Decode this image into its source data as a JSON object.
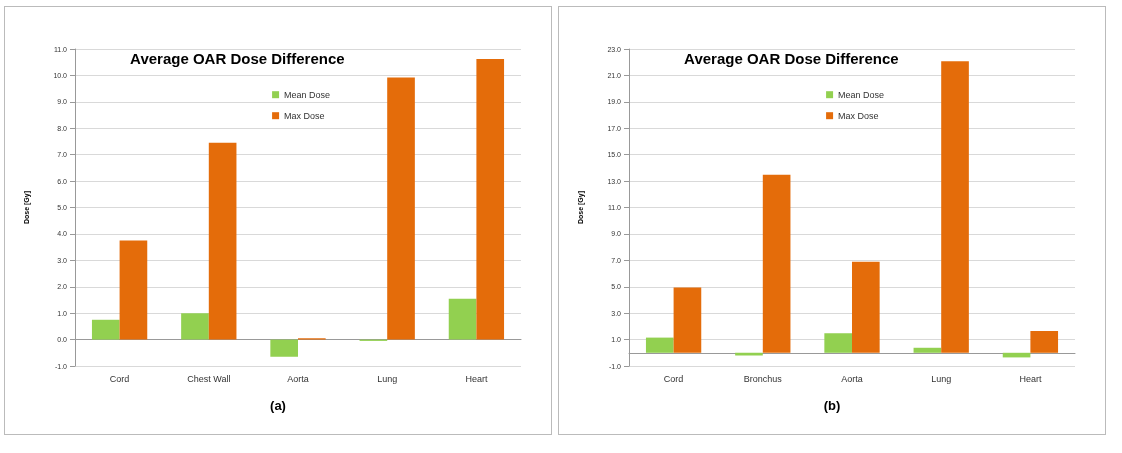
{
  "chart_data": [
    {
      "type": "bar",
      "title": "Average OAR Dose Difference",
      "ylabel": "Dose [Gy]",
      "annotations": [
        "(a)"
      ],
      "categories": [
        "Cord",
        "Chest Wall",
        "Aorta",
        "Lung",
        "Heart"
      ],
      "series": [
        {
          "name": "Mean Dose",
          "color": "#92d050",
          "values": [
            0.75,
            1.0,
            -0.65,
            -0.05,
            1.55
          ]
        },
        {
          "name": "Max Dose",
          "color": "#e46c0a",
          "values": [
            3.75,
            7.45,
            0.05,
            9.92,
            10.62
          ]
        }
      ],
      "ylim": [
        -1,
        11
      ],
      "yticks": [
        {
          "value": -1,
          "label": "-1.0"
        },
        {
          "value": 0,
          "label": "0.0"
        },
        {
          "value": 1,
          "label": "1.0"
        },
        {
          "value": 2,
          "label": "2.0"
        },
        {
          "value": 3,
          "label": "3.0"
        },
        {
          "value": 4,
          "label": "4.0"
        },
        {
          "value": 5,
          "label": "5.0"
        },
        {
          "value": 6,
          "label": "6.0"
        },
        {
          "value": 7,
          "label": "7.0"
        },
        {
          "value": 8,
          "label": "8.0"
        },
        {
          "value": 9,
          "label": "9.0"
        },
        {
          "value": 10,
          "label": "10.0"
        },
        {
          "value": 11,
          "label": "11.0"
        }
      ],
      "grid": "y",
      "legend": "top"
    },
    {
      "type": "bar",
      "title": "Average OAR Dose Difference",
      "ylabel": "Dose [Gy]",
      "annotations": [
        "(b)"
      ],
      "categories": [
        "Cord",
        "Bronchus",
        "Aorta",
        "Lung",
        "Heart"
      ],
      "series": [
        {
          "name": "Mean Dose",
          "color": "#92d050",
          "values": [
            1.15,
            -0.2,
            1.48,
            0.38,
            -0.35
          ]
        },
        {
          "name": "Max Dose",
          "color": "#e46c0a",
          "values": [
            4.95,
            13.48,
            6.9,
            22.08,
            1.65
          ]
        }
      ],
      "ylim": [
        -1,
        23
      ],
      "yticks": [
        {
          "value": -1,
          "label": "-1.0"
        },
        {
          "value": 1,
          "label": "1.0"
        },
        {
          "value": 3,
          "label": "3.0"
        },
        {
          "value": 5,
          "label": "5.0"
        },
        {
          "value": 7,
          "label": "7.0"
        },
        {
          "value": 9,
          "label": "9.0"
        },
        {
          "value": 11,
          "label": "11.0"
        },
        {
          "value": 13,
          "label": "13.0"
        },
        {
          "value": 15,
          "label": "15.0"
        },
        {
          "value": 17,
          "label": "17.0"
        },
        {
          "value": 19,
          "label": "19.0"
        },
        {
          "value": 21,
          "label": "21.0"
        },
        {
          "value": 23,
          "label": "23.0"
        }
      ],
      "grid": "y",
      "legend": "top"
    }
  ]
}
